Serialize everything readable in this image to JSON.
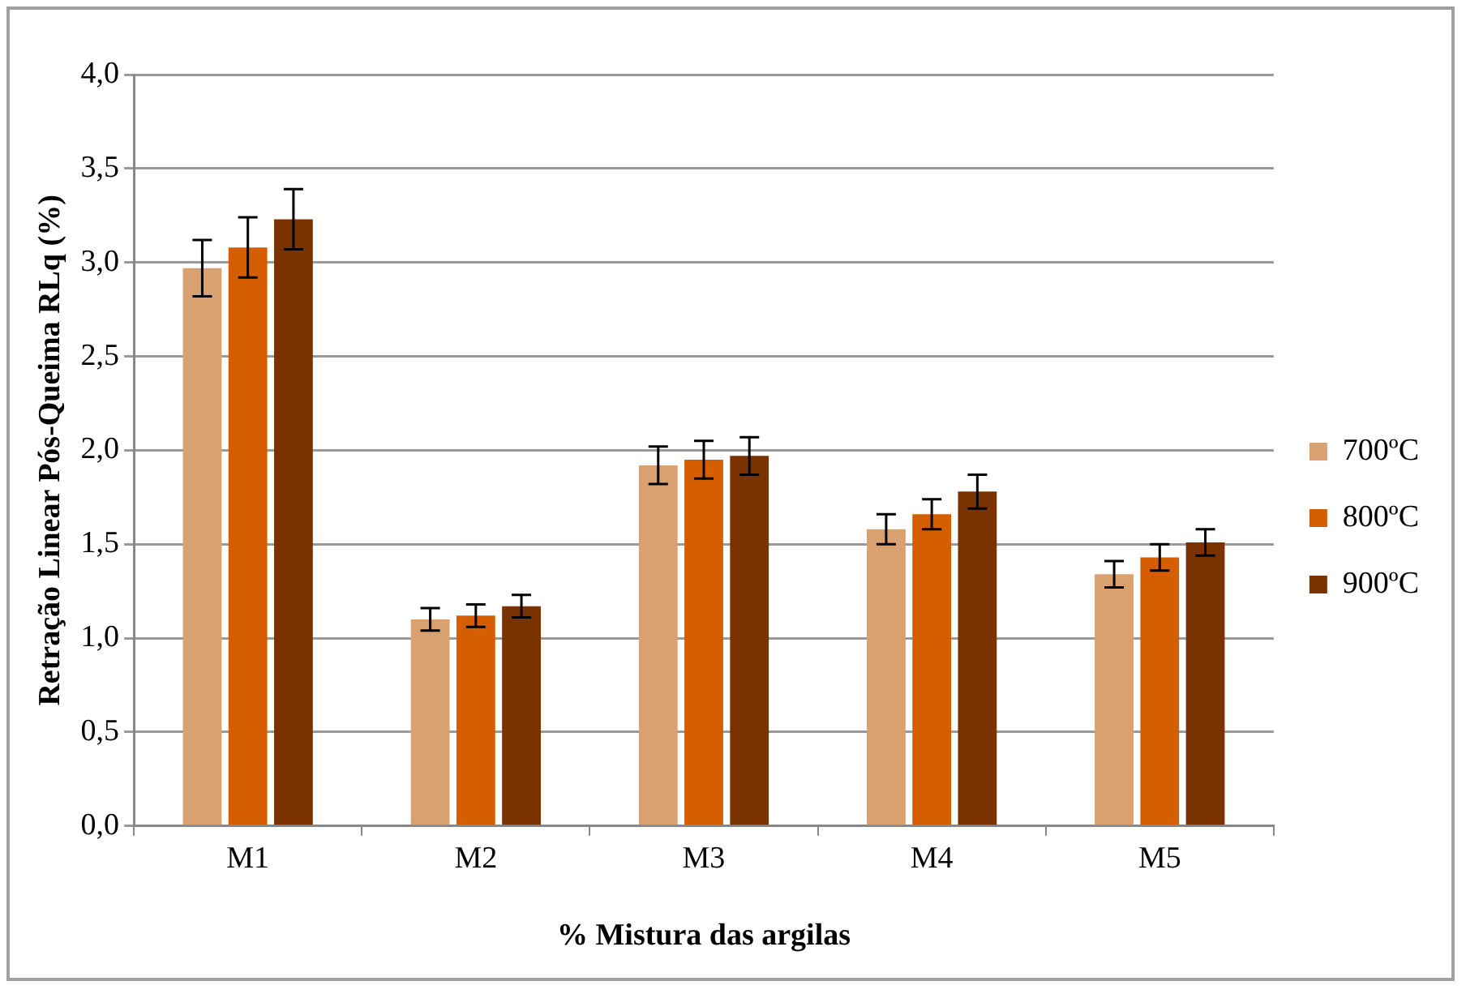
{
  "chart_data": {
    "type": "bar",
    "xlabel": "% Mistura das argilas",
    "ylabel": "Retração Linear Pós-Queima RLq (%)",
    "categories": [
      "M1",
      "M2",
      "M3",
      "M4",
      "M5"
    ],
    "series": [
      {
        "name": "700ºC",
        "color": "#d9a070",
        "values": [
          2.97,
          1.1,
          1.92,
          1.58,
          1.34
        ],
        "errors": [
          0.15,
          0.06,
          0.1,
          0.08,
          0.07
        ]
      },
      {
        "name": "800ºC",
        "color": "#d45e00",
        "values": [
          3.08,
          1.12,
          1.95,
          1.66,
          1.43
        ],
        "errors": [
          0.16,
          0.06,
          0.1,
          0.08,
          0.07
        ]
      },
      {
        "name": "900ºC",
        "color": "#7a3300",
        "values": [
          3.23,
          1.17,
          1.97,
          1.78,
          1.51
        ],
        "errors": [
          0.16,
          0.06,
          0.1,
          0.09,
          0.07
        ]
      }
    ],
    "ylim": [
      0,
      4
    ],
    "yticks": [
      {
        "value": 0,
        "label": "0,0"
      },
      {
        "value": 0.5,
        "label": "0,5"
      },
      {
        "value": 1,
        "label": "1,0"
      },
      {
        "value": 1.5,
        "label": "1,5"
      },
      {
        "value": 2,
        "label": "2,0"
      },
      {
        "value": 2.5,
        "label": "2,5"
      },
      {
        "value": 3,
        "label": "3,0"
      },
      {
        "value": 3.5,
        "label": "3,5"
      },
      {
        "value": 4,
        "label": "4,0"
      }
    ],
    "grid": "y",
    "legend": "right"
  }
}
